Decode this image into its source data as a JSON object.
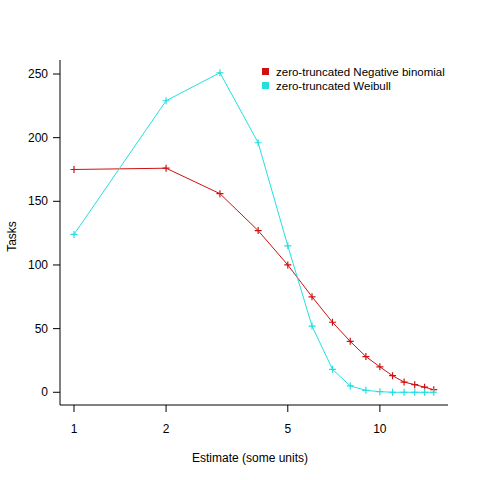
{
  "chart_data": {
    "type": "line",
    "x_label": "Estimate (some units)",
    "y_label": "Tasks",
    "x": [
      1,
      2,
      3,
      4,
      5,
      6,
      7,
      8,
      9,
      10,
      11,
      12,
      13,
      14,
      15
    ],
    "series": [
      {
        "name": "zero-truncated Negative binomial",
        "color": "#d01010",
        "values": [
          175,
          176,
          156,
          127,
          100,
          75,
          55,
          40,
          28,
          20,
          13,
          8,
          6,
          4,
          2
        ]
      },
      {
        "name": "zero-truncated Weibull",
        "color": "#22e0e0",
        "values": [
          124,
          229,
          251,
          196,
          115,
          52,
          18,
          5,
          1.5,
          0.5,
          0,
          0,
          0,
          0,
          0
        ]
      }
    ],
    "xlim": [
      0.9,
      16.7
    ],
    "ylim": [
      -10,
      261
    ],
    "xticks": [
      1,
      2,
      5,
      10
    ],
    "yticks": [
      0,
      50,
      100,
      150,
      200,
      250
    ],
    "log": "x",
    "legend": "topright",
    "marker": "plus",
    "line_style": "solid",
    "grid": false
  }
}
